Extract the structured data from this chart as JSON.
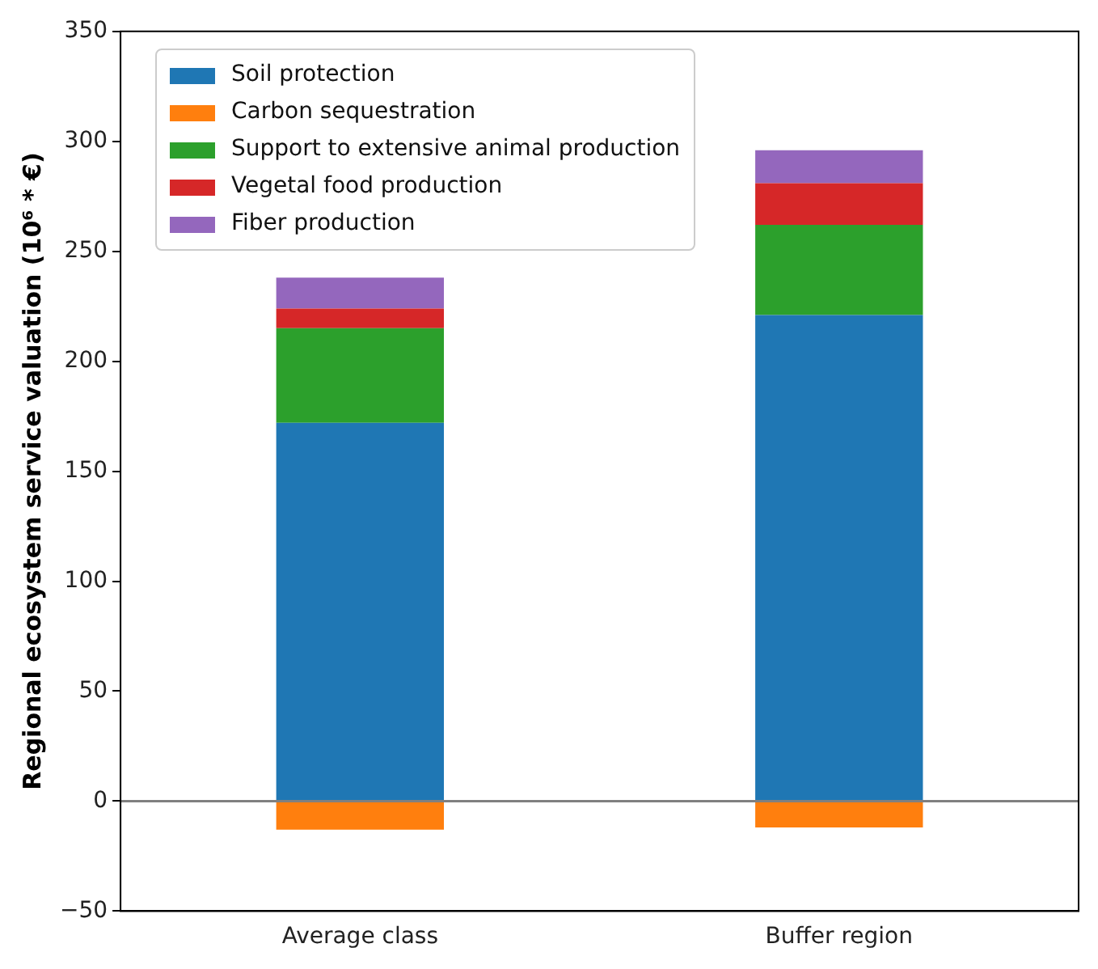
{
  "chart_data": {
    "type": "bar",
    "stacked": true,
    "ylabel": "Regional ecosystem service valuation (10⁶ * €)",
    "categories": [
      "Average class",
      "Buffer region"
    ],
    "series": [
      {
        "name": "Soil protection",
        "color": "#1f77b4",
        "values": [
          172,
          221
        ]
      },
      {
        "name": "Carbon sequestration",
        "color": "#ff7f0e",
        "values": [
          -13,
          -12
        ]
      },
      {
        "name": "Support to extensive animal production",
        "color": "#2ca02c",
        "values": [
          43,
          41
        ]
      },
      {
        "name": "Vegetal food production",
        "color": "#d62728",
        "values": [
          9,
          19
        ]
      },
      {
        "name": "Fiber production",
        "color": "#9467bd",
        "values": [
          14,
          15
        ]
      }
    ],
    "ylim": [
      -50,
      350
    ],
    "yticks": [
      -50,
      0,
      50,
      100,
      150,
      200,
      250,
      300,
      350
    ],
    "grid": false,
    "legend": "top left",
    "ref_lines": [
      {
        "axis": "y",
        "value": 0,
        "color": "#808080"
      }
    ]
  }
}
